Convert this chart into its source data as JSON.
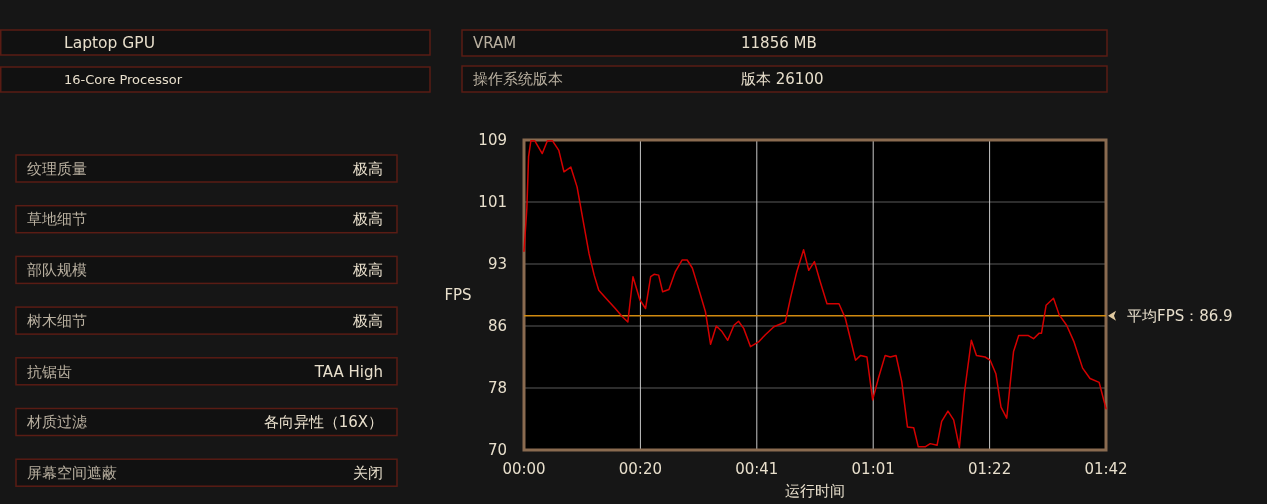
{
  "chart_data": [
    {
      "type": "other",
      "annotations": [
        "Laptop GPU",
        "16-Core Processor"
      ]
    },
    {
      "type": "other",
      "annotations": [
        "VRAM",
        "11856 MB",
        "操作系统版本",
        "版本 26100"
      ]
    },
    {
      "type": "other",
      "annotations": [
        "纹理质量",
        "极高",
        "草地细节",
        "极高",
        "部队规模",
        "极高",
        "树木细节",
        "极高",
        "抗锯齿",
        "TAA High",
        "材质过滤",
        "各向异性（16X）",
        "屏幕空间遮蔽",
        "关闭"
      ]
    },
    {
      "type": "line",
      "xlabel": "运行时间",
      "ylabel": "FPS",
      "x": [
        0,
        0.5,
        0.8,
        1.2,
        1.9,
        3.2,
        4.1,
        5.0,
        6.1,
        7.0,
        8.2,
        9.3,
        10.5,
        11.4,
        12.3,
        13.1,
        14.6,
        16.0,
        17.2,
        18.2,
        19.1,
        20.3,
        21.3,
        22.2,
        22.8,
        23.6,
        24.3,
        25.4,
        26.5,
        27.7,
        28.6,
        29.5,
        30.6,
        31.8,
        32.7,
        33.7,
        34.7,
        35.7,
        36.8,
        37.6,
        38.5,
        39.7,
        41.1,
        42.3,
        43.8,
        45.8,
        46.7,
        47.8,
        49.0,
        49.9,
        50.9,
        51.9,
        53.1,
        55.2,
        56.3,
        57.2,
        58.1,
        59.0,
        60.1,
        61.1,
        62.1,
        63.3,
        64.2,
        65.2,
        66.2,
        67.2,
        68.3,
        69.1,
        70.3,
        71.2,
        72.4,
        73.2,
        74.3,
        75.3,
        76.3,
        77.2,
        78.4,
        79.3,
        80.8,
        81.7,
        82.7,
        83.6,
        84.6,
        85.3,
        85.8,
        86.7,
        88.4,
        89.3,
        90.3,
        90.7,
        91.5,
        92.8,
        93.8,
        95.1,
        96.4,
        97.9,
        99.2,
        100.8,
        102.0
      ],
      "series": [
        {
          "color": "#d40000",
          "values": [
            95.0,
            100.4,
            106.9,
            108.9,
            108.9,
            107.3,
            108.9,
            108.9,
            107.7,
            105.0,
            105.6,
            103.1,
            98.3,
            94.7,
            92.0,
            90.1,
            88.9,
            87.8,
            86.8,
            86.1,
            91.8,
            88.9,
            87.8,
            91.8,
            92.1,
            92.0,
            89.9,
            90.2,
            92.4,
            93.9,
            93.9,
            92.9,
            90.3,
            87.4,
            83.3,
            85.6,
            84.9,
            83.8,
            85.7,
            86.2,
            85.3,
            83.0,
            83.6,
            84.5,
            85.5,
            86.1,
            89.1,
            92.4,
            95.2,
            92.6,
            93.7,
            91.2,
            88.4,
            88.4,
            86.6,
            84.0,
            81.3,
            81.9,
            81.7,
            76.3,
            79.0,
            81.9,
            81.7,
            81.9,
            78.6,
            72.9,
            72.8,
            70.4,
            70.4,
            70.8,
            70.6,
            73.6,
            74.9,
            73.8,
            70.3,
            77.3,
            83.8,
            81.9,
            81.7,
            81.3,
            79.6,
            75.4,
            74.0,
            79.0,
            82.4,
            84.4,
            84.4,
            84.0,
            84.7,
            84.7,
            88.2,
            89.1,
            87.0,
            85.7,
            83.6,
            80.3,
            79.0,
            78.5,
            75.2
          ]
        }
      ],
      "xlim": [
        0,
        102
      ],
      "xticks": [
        {
          "value": 0,
          "label": "00:00"
        },
        {
          "value": 20.4,
          "label": "00:20"
        },
        {
          "value": 40.8,
          "label": "00:41"
        },
        {
          "value": 61.2,
          "label": "01:01"
        },
        {
          "value": 81.6,
          "label": "01:22"
        },
        {
          "value": 102,
          "label": "01:42"
        }
      ],
      "ylim": [
        70,
        109
      ],
      "yticks": [
        70,
        {
          "value": 77.8,
          "label": "78"
        },
        {
          "value": 85.6,
          "label": "86"
        },
        {
          "value": 93.4,
          "label": "93"
        },
        {
          "value": 101.2,
          "label": "101"
        },
        109
      ],
      "grid": true,
      "ref_lines": [
        {
          "axis": "y",
          "value": 86.9,
          "label": "平均FPS：86.9",
          "color": "#d08a10"
        }
      ]
    }
  ]
}
